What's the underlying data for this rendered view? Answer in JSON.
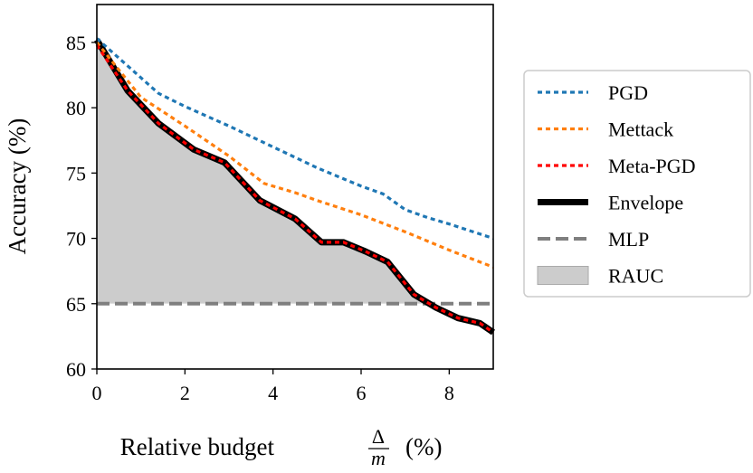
{
  "chart_data": {
    "type": "line",
    "xlabel": {
      "text": "Relative budget",
      "numerator": "Δ",
      "denominator": "m",
      "unit": "(%)"
    },
    "ylabel": "Accuracy (%)",
    "xlim": [
      0,
      9
    ],
    "ylim": [
      60,
      87.9
    ],
    "xticks": [
      0,
      2,
      4,
      6,
      8
    ],
    "yticks": [
      60,
      65,
      70,
      75,
      80,
      85
    ],
    "legend": "outside-right",
    "series": [
      {
        "name": "PGD",
        "color": "#1f77b4",
        "style": "dotted",
        "x": [
          0,
          1.4,
          2,
          3,
          4,
          5,
          5.5,
          6,
          6.5,
          7,
          7.5,
          8,
          9
        ],
        "values": [
          85.3,
          81.1,
          80.1,
          78.6,
          77.0,
          75.4,
          74.7,
          74.0,
          73.4,
          72.2,
          71.6,
          71.1,
          70.0
        ]
      },
      {
        "name": "Mettack",
        "color": "#ff7f0e",
        "style": "dotted",
        "x": [
          0,
          1,
          2,
          3,
          3.8,
          4.5,
          5,
          6,
          7,
          8,
          9
        ],
        "values": [
          85.0,
          80.8,
          78.6,
          76.3,
          74.2,
          73.5,
          72.9,
          71.8,
          70.5,
          69.1,
          67.8
        ]
      },
      {
        "name": "Meta-PGD",
        "color": "#ff0000",
        "style": "dotted",
        "x": [
          0,
          0.7,
          1.4,
          2.2,
          2.9,
          3.7,
          4.5,
          5.1,
          5.6,
          6.1,
          6.6,
          7.2,
          7.7,
          8.2,
          8.7,
          9
        ],
        "values": [
          84.8,
          81.3,
          78.8,
          76.8,
          75.8,
          72.9,
          71.5,
          69.7,
          69.7,
          69.0,
          68.2,
          65.7,
          64.7,
          63.9,
          63.5,
          62.8
        ]
      },
      {
        "name": "Envelope",
        "color": "#000000",
        "style": "thick",
        "x": [
          0,
          0.7,
          1.4,
          2.2,
          2.9,
          3.7,
          4.5,
          5.1,
          5.6,
          6.1,
          6.6,
          7.2,
          7.7,
          8.2,
          8.7,
          9
        ],
        "values": [
          85.2,
          81.3,
          78.8,
          76.8,
          75.8,
          72.9,
          71.5,
          69.7,
          69.7,
          69.0,
          68.2,
          65.7,
          64.7,
          63.9,
          63.5,
          62.8
        ]
      }
    ],
    "baseline": {
      "name": "MLP",
      "color": "#7f7f7f",
      "value": 65
    },
    "area": {
      "name": "RAUC",
      "color": "#cccccc"
    }
  }
}
